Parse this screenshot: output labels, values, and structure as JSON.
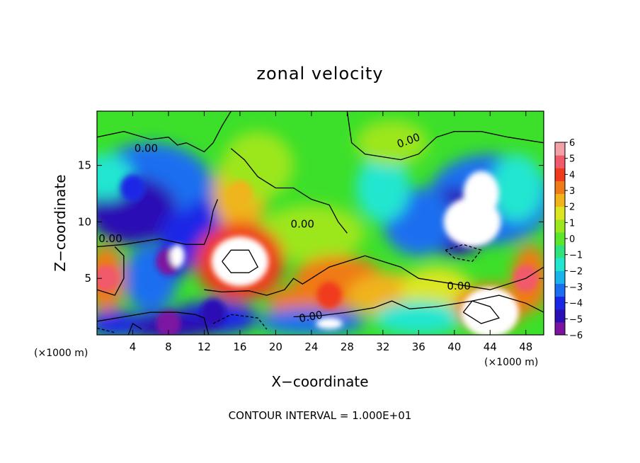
{
  "chart_data": {
    "type": "heatmap",
    "title": "zonal velocity",
    "xlabel": "X−coordinate",
    "ylabel": "Z−coordinate",
    "x_unit": "(×1000 m)",
    "x_ticks": [
      4,
      8,
      12,
      16,
      20,
      24,
      28,
      32,
      36,
      40,
      44,
      48
    ],
    "y_ticks": [
      5,
      10,
      15
    ],
    "xlim": [
      0,
      50
    ],
    "ylim": [
      0,
      19.8
    ],
    "colorbar": {
      "ticks": [
        "6",
        "5",
        "4",
        "3",
        "2",
        "1",
        "0",
        "−1",
        "−2",
        "−3",
        "−4",
        "−5",
        "−6"
      ],
      "range": [
        -6,
        6
      ],
      "colors": [
        "#7d12a0",
        "#2a10b4",
        "#1a28e6",
        "#1c6ef0",
        "#19b4ec",
        "#22e6d0",
        "#2ee27e",
        "#5ae62a",
        "#9ce61e",
        "#dce620",
        "#f0b41a",
        "#f07a18",
        "#f03a1c",
        "#f05a6a",
        "#f4a0a8"
      ]
    },
    "contour_labels": [
      "0.00",
      "0.00",
      "0.00",
      "0.00",
      "0.00",
      "0.00"
    ],
    "footer": "CONTOUR INTERVAL = 1.000E+01",
    "features": [
      {
        "x": 4,
        "z": 13,
        "value": -4
      },
      {
        "x": 8,
        "z": 6.5,
        "value": -6
      },
      {
        "x": 16,
        "z": 6.5,
        "value": 7
      },
      {
        "x": 16,
        "z": 12.5,
        "value": 2
      },
      {
        "x": 26,
        "z": 3.5,
        "value": 4
      },
      {
        "x": 42,
        "z": 10,
        "value": -7
      },
      {
        "x": 44,
        "z": 2,
        "value": 7
      },
      {
        "x": 13,
        "z": 2,
        "value": -5
      },
      {
        "x": 8,
        "z": 1,
        "value": -6
      },
      {
        "x": 1,
        "z": 5,
        "value": 5
      },
      {
        "x": 48,
        "z": 5,
        "value": 5
      }
    ]
  }
}
